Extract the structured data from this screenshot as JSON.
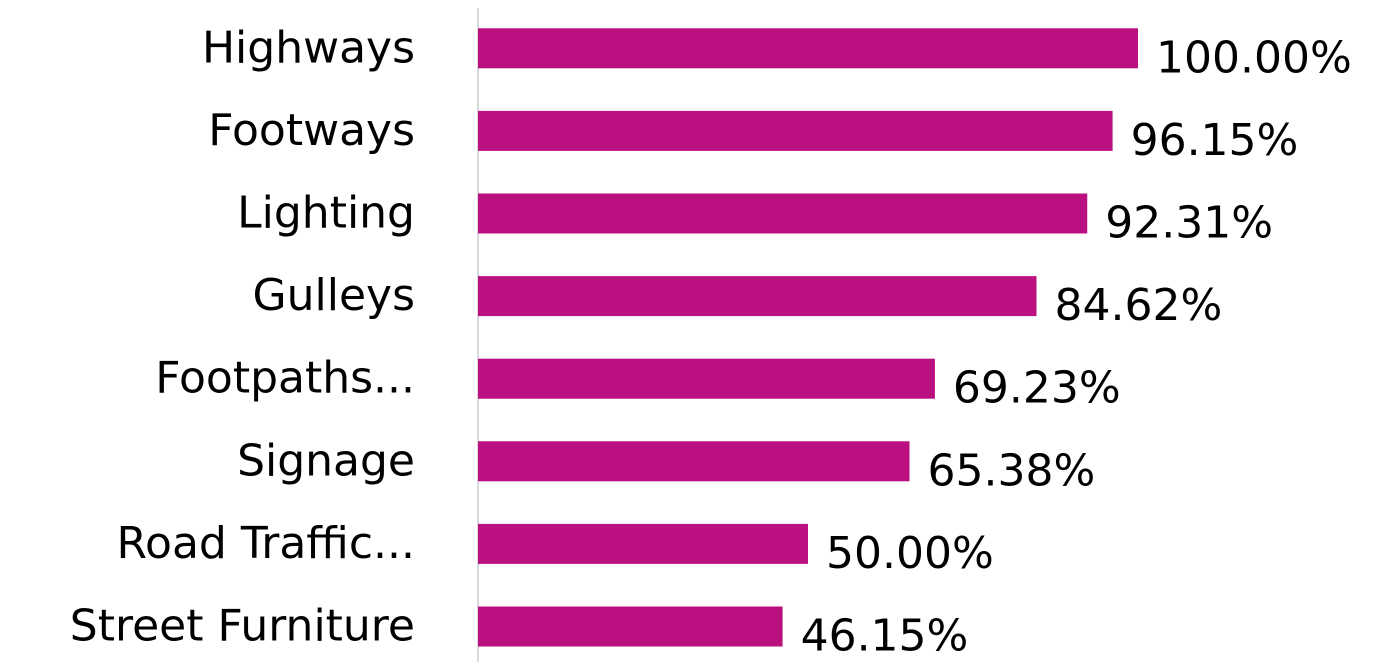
{
  "chart_data": {
    "type": "bar",
    "orientation": "horizontal",
    "categories": [
      "Highways",
      "Footways",
      "Lighting",
      "Gulleys",
      "Footpaths...",
      "Signage",
      "Road Traffic...",
      "Street Furniture"
    ],
    "values": [
      100,
      96.15,
      92.31,
      84.62,
      69.23,
      65.38,
      50,
      46.15
    ],
    "value_labels": [
      "100.00%",
      "96.15%",
      "92.31%",
      "84.62%",
      "69.23%",
      "65.38%",
      "50.00%",
      "46.15%"
    ],
    "color": "#bb107f",
    "xlim": [
      0,
      100
    ]
  }
}
